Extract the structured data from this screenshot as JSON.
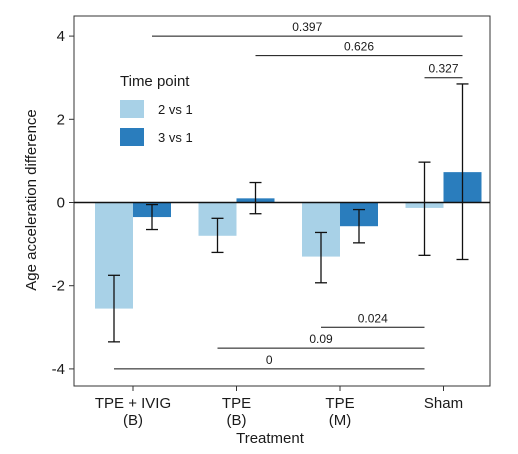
{
  "chart_data": {
    "type": "bar",
    "xlabel": "Treatment",
    "ylabel": "Age acceleration difference",
    "ylim": [
      -4.4,
      4.4
    ],
    "yticks": [
      -4,
      -2,
      0,
      2,
      4
    ],
    "categories": [
      {
        "line1": "TPE + IVIG",
        "line2": "(B)"
      },
      {
        "line1": "TPE",
        "line2": "(B)"
      },
      {
        "line1": "TPE",
        "line2": "(M)"
      },
      {
        "line1": "Sham",
        "line2": ""
      }
    ],
    "legend": {
      "title": "Time point",
      "placement": "top-left"
    },
    "series": [
      {
        "name": "2 vs 1",
        "color": "#a8d1e7",
        "values": [
          -2.55,
          -0.8,
          -1.3,
          -0.13
        ],
        "err_low": [
          -3.35,
          -1.2,
          -1.93,
          -1.27
        ],
        "err_high": [
          -1.75,
          -0.38,
          -0.72,
          0.97
        ]
      },
      {
        "name": "3 vs 1",
        "color": "#2a7dbd",
        "values": [
          -0.35,
          0.1,
          -0.57,
          0.73
        ],
        "err_low": [
          -0.65,
          -0.27,
          -0.97,
          -1.37
        ],
        "err_high": [
          -0.05,
          0.48,
          -0.17,
          2.85
        ]
      }
    ],
    "comparisons": [
      {
        "from": [
          0,
          1
        ],
        "to": [
          3,
          1
        ],
        "y": 4.0,
        "label": "0.397"
      },
      {
        "from": [
          1,
          1
        ],
        "to": [
          3,
          1
        ],
        "y": 3.53,
        "label": "0.626"
      },
      {
        "from": [
          3,
          0
        ],
        "to": [
          3,
          1
        ],
        "y": 3.0,
        "label": "0.327"
      },
      {
        "from": [
          2,
          0
        ],
        "to": [
          3,
          0
        ],
        "y": -3.0,
        "label": "0.024"
      },
      {
        "from": [
          1,
          0
        ],
        "to": [
          3,
          0
        ],
        "y": -3.5,
        "label": "0.09"
      },
      {
        "from": [
          0,
          0
        ],
        "to": [
          3,
          0
        ],
        "y": -4.0,
        "label": "0"
      }
    ]
  }
}
